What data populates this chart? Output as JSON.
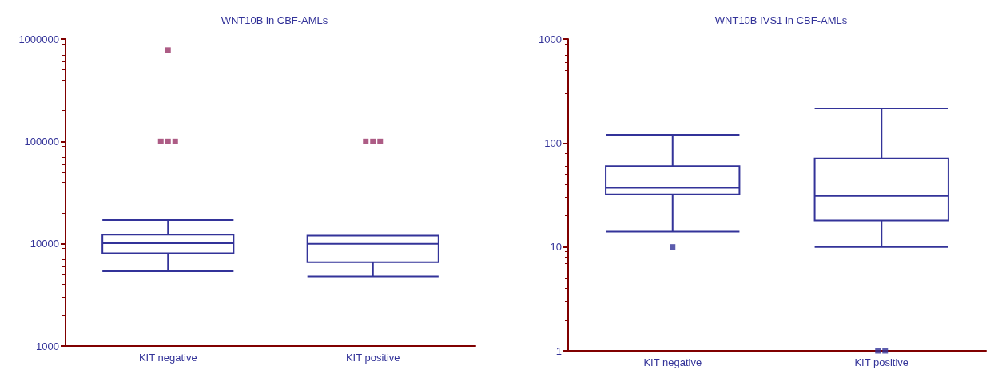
{
  "chart_data": [
    {
      "type": "box",
      "title": "WNT10B in CBF-AMLs",
      "categories": [
        "KIT negative",
        "KIT positive"
      ],
      "log": "y",
      "ylim": [
        1000,
        1000000
      ],
      "yticks": [
        1000,
        10000,
        100000,
        1000000
      ],
      "grid": false,
      "series": [
        {
          "color": "#333399",
          "boxes": [
            {
              "low": 5400,
              "q1": 8100,
              "median": 10100,
              "q3": 12300,
              "high": 17000
            },
            {
              "low": 4800,
              "q1": 6600,
              "median": 10000,
              "q3": 12000,
              "high": 12000
            }
          ]
        },
        {
          "type": "scatter",
          "color": "#993366",
          "marker": "square",
          "x": [
            "KIT negative",
            "KIT negative",
            "KIT negative",
            "KIT negative",
            "KIT positive",
            "KIT positive",
            "KIT positive"
          ],
          "values": [
            780000,
            100000,
            100000,
            100000,
            100000,
            100000,
            100000
          ]
        }
      ]
    },
    {
      "type": "box",
      "title": "WNT10B IVS1 in CBF-AMLs",
      "categories": [
        "KIT negative",
        "KIT positive"
      ],
      "log": "y",
      "ylim": [
        1,
        1000
      ],
      "yticks": [
        1,
        10,
        100,
        1000
      ],
      "grid": false,
      "series": [
        {
          "color": "#333399",
          "boxes": [
            {
              "low": 14,
              "q1": 32,
              "median": 37,
              "q3": 60,
              "high": 120
            },
            {
              "low": 10,
              "q1": 18,
              "median": 31,
              "q3": 71,
              "high": 215
            }
          ]
        },
        {
          "type": "scatter",
          "color": "#333399",
          "marker": "square",
          "x": [
            "KIT negative",
            "KIT positive",
            "KIT positive"
          ],
          "values": [
            10,
            1,
            1
          ]
        }
      ]
    }
  ]
}
